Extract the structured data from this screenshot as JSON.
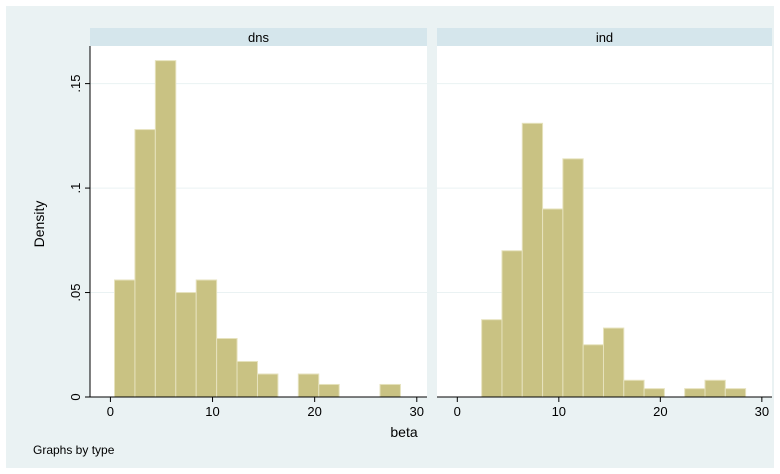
{
  "chart_data": {
    "type": "bar",
    "ylabel": "Density",
    "xlabel": "beta",
    "note": "Graphs by type",
    "xlim": [
      -2,
      31
    ],
    "ylim": [
      0,
      0.168
    ],
    "x_ticks": [
      {
        "value": 0,
        "label": "0"
      },
      {
        "value": 10,
        "label": "10"
      },
      {
        "value": 20,
        "label": "20"
      },
      {
        "value": 30,
        "label": "30"
      }
    ],
    "y_ticks": [
      {
        "value": 0,
        "label": "0"
      },
      {
        "value": 0.05,
        "label": ".05"
      },
      {
        "value": 0.1,
        "label": ".1"
      },
      {
        "value": 0.15,
        "label": ".15"
      }
    ],
    "grid": true,
    "bar_color": "#c9c283",
    "background_color": "#eaf2f3",
    "panels": [
      {
        "name": "dns",
        "bins": [
          {
            "x0": 0.4,
            "x1": 2.4,
            "density": 0.056
          },
          {
            "x0": 2.4,
            "x1": 4.4,
            "density": 0.128
          },
          {
            "x0": 4.4,
            "x1": 6.4,
            "density": 0.161
          },
          {
            "x0": 6.4,
            "x1": 8.4,
            "density": 0.05
          },
          {
            "x0": 8.4,
            "x1": 10.4,
            "density": 0.056
          },
          {
            "x0": 10.4,
            "x1": 12.4,
            "density": 0.028
          },
          {
            "x0": 12.4,
            "x1": 14.4,
            "density": 0.017
          },
          {
            "x0": 14.4,
            "x1": 16.4,
            "density": 0.011
          },
          {
            "x0": 16.4,
            "x1": 18.4,
            "density": 0.0
          },
          {
            "x0": 18.4,
            "x1": 20.4,
            "density": 0.011
          },
          {
            "x0": 20.4,
            "x1": 22.4,
            "density": 0.006
          },
          {
            "x0": 22.4,
            "x1": 24.4,
            "density": 0.0
          },
          {
            "x0": 24.4,
            "x1": 26.4,
            "density": 0.0
          },
          {
            "x0": 26.4,
            "x1": 28.4,
            "density": 0.006
          }
        ]
      },
      {
        "name": "ind",
        "bins": [
          {
            "x0": 2.4,
            "x1": 4.4,
            "density": 0.037
          },
          {
            "x0": 4.4,
            "x1": 6.4,
            "density": 0.07
          },
          {
            "x0": 6.4,
            "x1": 8.4,
            "density": 0.131
          },
          {
            "x0": 8.4,
            "x1": 10.4,
            "density": 0.09
          },
          {
            "x0": 10.4,
            "x1": 12.4,
            "density": 0.114
          },
          {
            "x0": 12.4,
            "x1": 14.4,
            "density": 0.025
          },
          {
            "x0": 14.4,
            "x1": 16.4,
            "density": 0.033
          },
          {
            "x0": 16.4,
            "x1": 18.4,
            "density": 0.008
          },
          {
            "x0": 18.4,
            "x1": 20.4,
            "density": 0.004
          },
          {
            "x0": 20.4,
            "x1": 22.4,
            "density": 0.0
          },
          {
            "x0": 22.4,
            "x1": 24.4,
            "density": 0.004
          },
          {
            "x0": 24.4,
            "x1": 26.4,
            "density": 0.008
          },
          {
            "x0": 26.4,
            "x1": 28.4,
            "density": 0.004
          }
        ]
      }
    ]
  }
}
